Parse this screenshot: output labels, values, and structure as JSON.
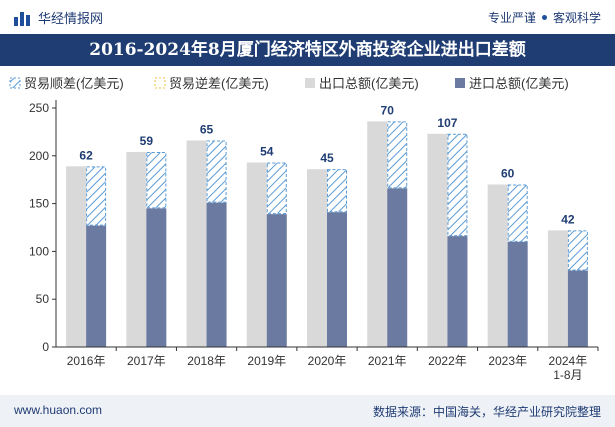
{
  "header": {
    "brand": "华经情报网",
    "tagline_left": "专业严谨",
    "tagline_right": "客观科学"
  },
  "title": "2016-2024年8月厦门经济特区外商投资企业进出口差额",
  "footer": {
    "website": "www.huaon.com",
    "source": "数据来源：中国海关，华经产业研究院整理"
  },
  "colors": {
    "export": "#d9d9d9",
    "import": "#6b7aa1",
    "surplus_stroke": "#5b9bd5",
    "deficit_stroke": "#f0c14b",
    "title_bg": "#1f3d73"
  },
  "chart_data": {
    "type": "bar",
    "categories": [
      "2016年",
      "2017年",
      "2018年",
      "2019年",
      "2020年",
      "2021年",
      "2022年",
      "2023年",
      "2024年\n1-8月"
    ],
    "series": [
      {
        "name": "出口总额(亿美元)",
        "values": [
          189,
          204,
          216,
          193,
          186,
          236,
          223,
          170,
          122
        ]
      },
      {
        "name": "进口总额(亿美元)",
        "values": [
          127,
          145,
          151,
          139,
          141,
          166,
          116,
          110,
          80
        ]
      }
    ],
    "balance": {
      "surplus_name": "贸易顺差(亿美元)",
      "deficit_name": "贸易逆差(亿美元)",
      "values": [
        62,
        59,
        65,
        54,
        45,
        70,
        107,
        60,
        42
      ]
    },
    "yticks": [
      0,
      50,
      100,
      150,
      200,
      250
    ],
    "ylim": [
      0,
      250
    ],
    "legend": "top-left"
  }
}
